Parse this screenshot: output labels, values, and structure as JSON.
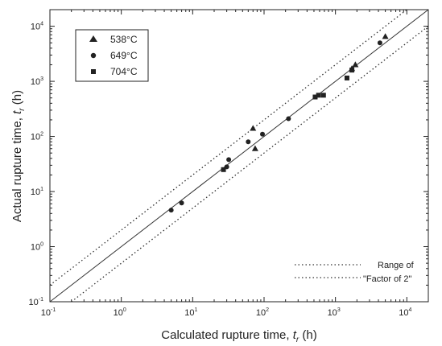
{
  "chart_data": {
    "type": "scatter",
    "scale": {
      "x": "log",
      "y": "log"
    },
    "xlim": [
      0.1,
      20000
    ],
    "ylim": [
      0.1,
      20000
    ],
    "x_ticks": [
      {
        "base": "10",
        "exp": "-1",
        "value": 0.1
      },
      {
        "base": "10",
        "exp": "0",
        "value": 1
      },
      {
        "base": "10",
        "exp": "1",
        "value": 10
      },
      {
        "base": "10",
        "exp": "2",
        "value": 100
      },
      {
        "base": "10",
        "exp": "3",
        "value": 1000
      },
      {
        "base": "10",
        "exp": "4",
        "value": 10000
      }
    ],
    "y_ticks": [
      {
        "base": "10",
        "exp": "-1",
        "value": 0.1
      },
      {
        "base": "10",
        "exp": "0",
        "value": 1
      },
      {
        "base": "10",
        "exp": "1",
        "value": 10
      },
      {
        "base": "10",
        "exp": "2",
        "value": 100
      },
      {
        "base": "10",
        "exp": "3",
        "value": 1000
      },
      {
        "base": "10",
        "exp": "4",
        "value": 10000
      }
    ],
    "xlabel": {
      "main": "Calculated rupture time, ",
      "var": "t",
      "sub": "r",
      "unit": " (h)"
    },
    "ylabel": {
      "main": "Actual rupture time, ",
      "var": "t",
      "sub": "r",
      "unit": " (h)"
    },
    "legend_placement": "top-left",
    "series": [
      {
        "name": "538°C",
        "marker": "triangle",
        "points": [
          [
            70,
            140
          ],
          [
            75,
            60
          ],
          [
            1700,
            1700
          ],
          [
            1900,
            2000
          ],
          [
            5000,
            6500
          ]
        ]
      },
      {
        "name": "649°C",
        "marker": "circle",
        "points": [
          [
            5,
            4.6
          ],
          [
            7,
            6.2
          ],
          [
            30,
            28
          ],
          [
            32,
            38
          ],
          [
            60,
            80
          ],
          [
            95,
            110
          ],
          [
            220,
            210
          ],
          [
            4200,
            5000
          ]
        ]
      },
      {
        "name": "704°C",
        "marker": "square",
        "points": [
          [
            27,
            25
          ],
          [
            520,
            520
          ],
          [
            580,
            560
          ],
          [
            680,
            560
          ],
          [
            1450,
            1150
          ],
          [
            1700,
            1600
          ]
        ]
      }
    ],
    "lines": [
      {
        "role": "equality",
        "style": "solid",
        "factor": 1
      },
      {
        "role": "upper-bound",
        "style": "dotted",
        "factor": 2
      },
      {
        "role": "lower-bound",
        "style": "dotted",
        "factor": 0.5
      }
    ],
    "annotation": {
      "line1": "Range of",
      "line2": "\"Factor of 2\""
    }
  }
}
